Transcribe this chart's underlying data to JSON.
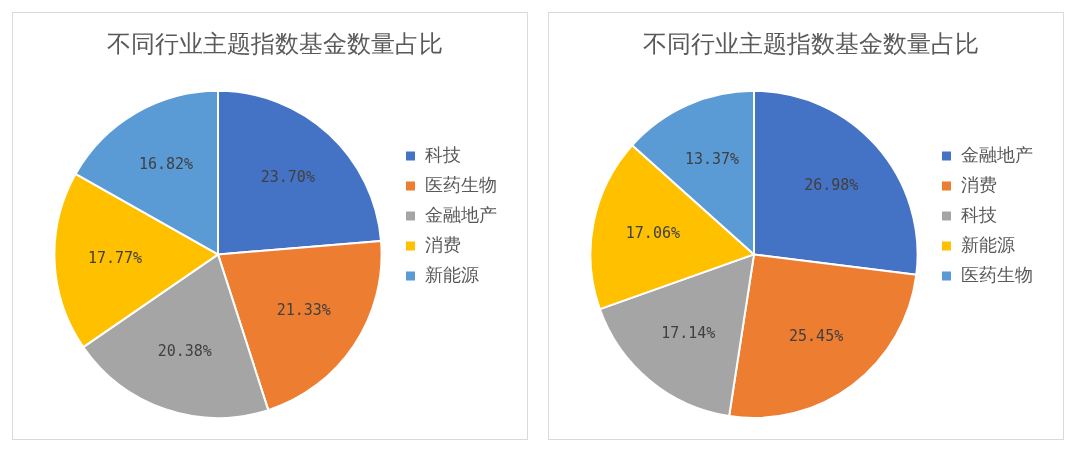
{
  "chart_data": [
    {
      "type": "pie",
      "title": "不同行业主题指数基金数量占比",
      "categories": [
        "科技",
        "医药生物",
        "金融地产",
        "消费",
        "新能源"
      ],
      "values": [
        23.7,
        21.33,
        20.38,
        17.77,
        16.82
      ],
      "colors": [
        "#4472c4",
        "#ed7d31",
        "#a5a5a5",
        "#ffc000",
        "#5b9bd5"
      ],
      "value_labels": [
        "23.70%",
        "21.33%",
        "20.38%",
        "17.77%",
        "16.82%"
      ],
      "legend": "right"
    },
    {
      "type": "pie",
      "title": "不同行业主题指数基金数量占比",
      "categories": [
        "金融地产",
        "消费",
        "科技",
        "新能源",
        "医药生物"
      ],
      "values": [
        26.98,
        25.45,
        17.14,
        17.06,
        13.37
      ],
      "colors": [
        "#4472c4",
        "#ed7d31",
        "#a5a5a5",
        "#ffc000",
        "#5b9bd5"
      ],
      "value_labels": [
        "26.98%",
        "25.45%",
        "17.14%",
        "17.06%",
        "13.37%"
      ],
      "legend": "right"
    }
  ]
}
